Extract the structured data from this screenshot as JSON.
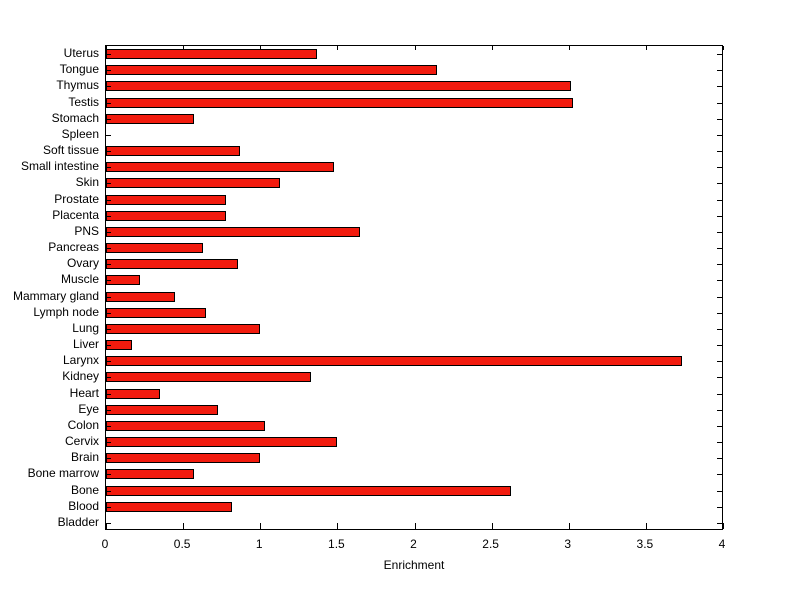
{
  "chart_data": {
    "type": "bar",
    "orientation": "horizontal",
    "title": "",
    "xlabel": "Enrichment",
    "ylabel": "",
    "xlim": [
      0,
      4
    ],
    "xticks": [
      0,
      0.5,
      1,
      1.5,
      2,
      2.5,
      3,
      3.5,
      4
    ],
    "xtick_labels": [
      "0",
      "0.5",
      "1",
      "1.5",
      "2",
      "2.5",
      "3",
      "3.5",
      "4"
    ],
    "grid": false,
    "legend": "none",
    "bar_color": "#f21b0e",
    "bar_edge_color": "#000000",
    "background_color": "#ffffff",
    "categories": [
      "Uterus",
      "Tongue",
      "Thymus",
      "Testis",
      "Stomach",
      "Spleen",
      "Soft tissue",
      "Small intestine",
      "Skin",
      "Prostate",
      "Placenta",
      "PNS",
      "Pancreas",
      "Ovary",
      "Muscle",
      "Mammary gland",
      "Lymph node",
      "Lung",
      "Liver",
      "Larynx",
      "Kidney",
      "Heart",
      "Eye",
      "Colon",
      "Cervix",
      "Brain",
      "Bone marrow",
      "Bone",
      "Blood",
      "Bladder"
    ],
    "values": [
      1.37,
      2.15,
      3.02,
      3.03,
      0.57,
      0,
      0.87,
      1.48,
      1.13,
      0.78,
      0.78,
      1.65,
      0.63,
      0.86,
      0.22,
      0.45,
      0.65,
      1.0,
      0.17,
      3.74,
      1.33,
      0.35,
      0.73,
      1.03,
      1.5,
      1.0,
      0.57,
      2.63,
      0.82,
      0
    ]
  }
}
